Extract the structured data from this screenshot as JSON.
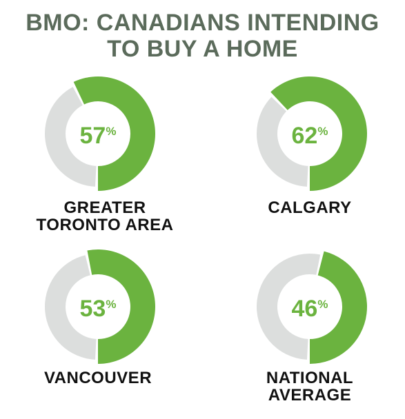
{
  "title_lines": [
    "BMO: CANADIANS INTENDING",
    "TO BUY A HOME"
  ],
  "colors": {
    "accent": "#6bb33f",
    "track": "#dcdedd",
    "title": "#5b6b5b",
    "label": "#111111"
  },
  "chart_data": {
    "type": "pie",
    "title": "BMO: CANADIANS INTENDING TO BUY A HOME",
    "unit": "%",
    "categories": [
      "GREATER TORONTO AREA",
      "CALGARY",
      "VANCOUVER",
      "NATIONAL AVERAGE"
    ],
    "values": [
      57,
      62,
      53,
      46
    ],
    "items": [
      {
        "label_lines": [
          "GREATER",
          "TORONTO AREA"
        ],
        "value": 57,
        "value_text": "57",
        "unit": "%"
      },
      {
        "label_lines": [
          "CALGARY"
        ],
        "value": 62,
        "value_text": "62",
        "unit": "%"
      },
      {
        "label_lines": [
          "VANCOUVER"
        ],
        "value": 53,
        "value_text": "53",
        "unit": "%"
      },
      {
        "label_lines": [
          "NATIONAL",
          "AVERAGE"
        ],
        "value": 46,
        "value_text": "46",
        "unit": "%"
      }
    ]
  }
}
